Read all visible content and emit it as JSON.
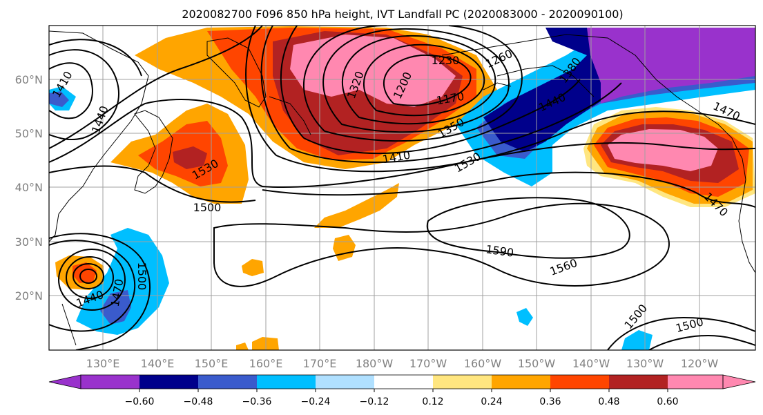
{
  "title": "2020082700 F096 850 hPa height, IVT Landfall PC (2020083000 - 2020090100)",
  "map": {
    "lat_labels": [
      "20°N",
      "30°N",
      "40°N",
      "50°N",
      "60°N"
    ],
    "lon_labels": [
      "130°E",
      "140°E",
      "150°E",
      "160°E",
      "170°E",
      "180°W",
      "170°W",
      "160°W",
      "150°W",
      "140°W",
      "130°W",
      "120°W"
    ],
    "contour_labels": [
      "1200",
      "1230",
      "1260",
      "1320",
      "1380",
      "1410",
      "1410",
      "1440",
      "1440",
      "1440",
      "1470",
      "1470",
      "1470",
      "1500",
      "1500",
      "1500",
      "1500",
      "1530",
      "1530",
      "1560",
      "1590",
      "1350",
      "1170"
    ]
  },
  "colorbar": {
    "ticks": [
      "−0.60",
      "−0.48",
      "−0.36",
      "−0.24",
      "−0.12",
      "0.12",
      "0.24",
      "0.36",
      "0.48",
      "0.60"
    ],
    "colors": [
      "#9932cc",
      "#00008b",
      "#3a5bcc",
      "#00bfff",
      "#b0e0ff",
      "#ffffff",
      "#ffe680",
      "#ffa500",
      "#ff4500",
      "#b22222",
      "#ff88b0"
    ]
  },
  "colors": {
    "purple": "#9932cc",
    "navy": "#00008b",
    "blue": "#3a5bcc",
    "cyan": "#00bfff",
    "lightblue": "#b0e0ff",
    "yellow": "#ffe680",
    "orange": "#ffa500",
    "redorange": "#ff4500",
    "darkred": "#b22222",
    "pink": "#ff88b0"
  }
}
